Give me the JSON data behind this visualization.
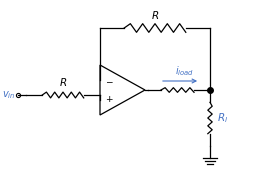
{
  "bg_color": "#ffffff",
  "line_color": "#000000",
  "label_color_R": "#000000",
  "label_color_iload": "#4472c4",
  "label_color_Rl": "#4472c4",
  "label_color_vin": "#4472c4",
  "opamp_color": "#000000",
  "dot_color": "#000000",
  "vin_label": "$v_{in}$",
  "R_label": "$R$",
  "R_top_label": "$R$",
  "iload_label": "$i_{load}$",
  "Rl_label": "$R_l$",
  "figsize": [
    2.55,
    1.77
  ],
  "dpi": 100
}
